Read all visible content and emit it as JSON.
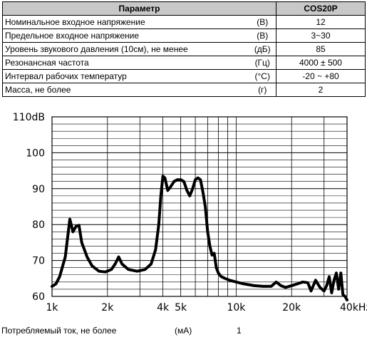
{
  "table": {
    "header": {
      "param": "Параметр",
      "model": "COS20P"
    },
    "rows": [
      {
        "name": "Номинальное входное напряжение",
        "unit": "(В)",
        "value": "12"
      },
      {
        "name": "Предельное входное напряжение",
        "unit": "(В)",
        "value": "3~30"
      },
      {
        "name": "Уровень звукового давления (10см), не менее",
        "unit": "(дБ)",
        "value": "85"
      },
      {
        "name": "Резонансная частота",
        "unit": "(Гц)",
        "value": "4000 ± 500"
      },
      {
        "name": "Интервал рабочих температур",
        "unit": "(°С)",
        "value": "-20 ~ +80"
      },
      {
        "name": "Масса, не более",
        "unit": "(г)",
        "value": "2"
      }
    ]
  },
  "footer": {
    "label": "Потребляемый ток, не более",
    "unit": "(мА)",
    "value": "1"
  },
  "chart_data": {
    "type": "line",
    "x_scale": "log",
    "xlim": [
      1000,
      40000
    ],
    "ylim": [
      60,
      110
    ],
    "y_ticks": [
      {
        "value": 110,
        "label": "110dB"
      },
      {
        "value": 100,
        "label": "100"
      },
      {
        "value": 90,
        "label": "90"
      },
      {
        "value": 80,
        "label": "80"
      },
      {
        "value": 70,
        "label": "70"
      },
      {
        "value": 60,
        "label": "60"
      }
    ],
    "x_ticks": [
      {
        "value": 1000,
        "label": "1k"
      },
      {
        "value": 2000,
        "label": "2k"
      },
      {
        "value": 4000,
        "label": "4k"
      },
      {
        "value": 5000,
        "label": "5k"
      },
      {
        "value": 10000,
        "label": "10k"
      },
      {
        "value": 20000,
        "label": "20k"
      },
      {
        "value": 40000,
        "label": "40kHz"
      }
    ],
    "grid": true,
    "series_color": "#000000",
    "series": [
      {
        "x": [
          1000,
          1050,
          1100,
          1180,
          1250,
          1300,
          1350,
          1400,
          1450,
          1550,
          1650,
          1800,
          1950,
          2100,
          2200,
          2300,
          2400,
          2600,
          2900,
          3200,
          3450,
          3650,
          3800,
          3900,
          4000,
          4100,
          4250,
          4400,
          4600,
          4800,
          5000,
          5200,
          5400,
          5600,
          5800,
          6000,
          6200,
          6400,
          6600,
          6800,
          7000,
          7200,
          7400,
          7600,
          7800,
          8000,
          8300,
          8700,
          9200,
          10000,
          11000,
          12500,
          14000,
          15500,
          16500,
          17500,
          18500,
          20000,
          21500,
          23000,
          24500,
          25500,
          27000,
          28500,
          30000,
          31000,
          32000,
          33000,
          34000,
          35000,
          36000,
          37000,
          38000,
          39000,
          40000
        ],
        "y": [
          62.8,
          63.5,
          65.5,
          71,
          81.5,
          78,
          79.5,
          79.8,
          75,
          71,
          68.5,
          67,
          66.8,
          67.5,
          69,
          71,
          69,
          67.5,
          67,
          67.5,
          69,
          73,
          80,
          88,
          93.5,
          93,
          89.5,
          90.5,
          92,
          92.5,
          92.5,
          92,
          89.5,
          88,
          90,
          92.5,
          93,
          92.5,
          89,
          85,
          78,
          74,
          71.5,
          72,
          68,
          66.5,
          65.5,
          65,
          64.5,
          64,
          63.5,
          63,
          62.8,
          62.8,
          64,
          63,
          62.5,
          63,
          63.5,
          64,
          63.8,
          61.5,
          64.5,
          62.5,
          61.5,
          63,
          65.5,
          61,
          64.5,
          66.5,
          62,
          66.5,
          60.5,
          60,
          59
        ]
      }
    ]
  }
}
